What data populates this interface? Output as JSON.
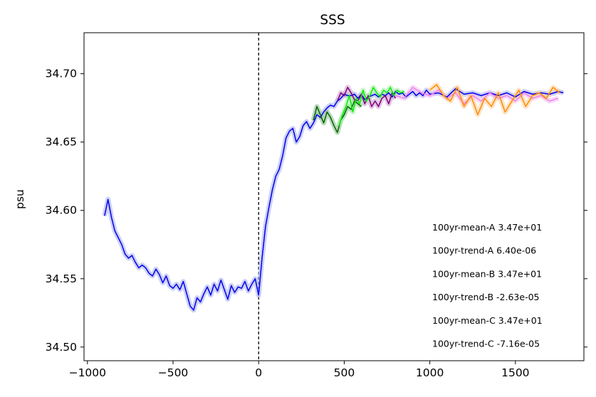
{
  "chart_data": {
    "type": "line",
    "title": "SSS",
    "xlabel": "",
    "ylabel": "psu",
    "xlim": [
      -1020,
      1900
    ],
    "ylim": [
      34.49,
      34.73
    ],
    "xticks": [
      -1000,
      -500,
      0,
      500,
      1000,
      1500
    ],
    "xtick_labels": [
      "−1000",
      "−500",
      "0",
      "500",
      "1000",
      "1500"
    ],
    "yticks": [
      34.5,
      34.55,
      34.6,
      34.65,
      34.7
    ],
    "ytick_labels": [
      "34.50",
      "34.55",
      "34.60",
      "34.65",
      "34.70"
    ],
    "vline_x": 0,
    "grid": false,
    "annotations": [
      "100yr-mean-A  3.47e+01",
      "100yr-trend-A  6.40e-06",
      "100yr-mean-B  3.47e+01",
      "100yr-trend-B  -2.63e-05",
      "100yr-mean-C  3.47e+01",
      "100yr-trend-C  -7.16e-05"
    ],
    "series": [
      {
        "color": "#0000ee",
        "raw_color": "#aab0f0",
        "x": [
          -900,
          -880,
          -860,
          -840,
          -820,
          -800,
          -780,
          -760,
          -740,
          -720,
          -700,
          -680,
          -660,
          -640,
          -620,
          -600,
          -580,
          -560,
          -540,
          -520,
          -500,
          -480,
          -460,
          -440,
          -420,
          -400,
          -380,
          -360,
          -340,
          -320,
          -300,
          -280,
          -260,
          -240,
          -220,
          -200,
          -180,
          -160,
          -140,
          -120,
          -100,
          -80,
          -60,
          -40,
          -20,
          0,
          20,
          40,
          60,
          80,
          100,
          120,
          140,
          160,
          180,
          200,
          220,
          240,
          260,
          280,
          300,
          320,
          340,
          360,
          380,
          400,
          420,
          440,
          460,
          480,
          500,
          520,
          540,
          560,
          580,
          600,
          620,
          640,
          660,
          680,
          700,
          720,
          740,
          760,
          780,
          800,
          820,
          840,
          860,
          880,
          900,
          920,
          940,
          960,
          980,
          1000,
          1050,
          1100,
          1150,
          1200,
          1250,
          1300,
          1350,
          1400,
          1450,
          1500,
          1550,
          1600,
          1650,
          1700,
          1750,
          1780
        ],
        "values": [
          34.596,
          34.608,
          34.595,
          34.585,
          34.58,
          34.575,
          34.568,
          34.565,
          34.567,
          34.562,
          34.558,
          34.56,
          34.558,
          34.554,
          34.552,
          34.557,
          34.553,
          34.547,
          34.552,
          34.545,
          34.543,
          34.546,
          34.542,
          34.548,
          34.539,
          34.53,
          34.527,
          34.536,
          34.533,
          34.539,
          34.544,
          34.538,
          34.546,
          34.541,
          34.549,
          34.542,
          34.535,
          34.545,
          34.54,
          34.544,
          34.543,
          34.548,
          34.541,
          34.546,
          34.55,
          34.538,
          34.565,
          34.588,
          34.602,
          34.615,
          34.625,
          34.63,
          34.64,
          34.653,
          34.658,
          34.66,
          34.65,
          34.654,
          34.662,
          34.665,
          34.66,
          34.664,
          34.67,
          34.668,
          34.672,
          34.675,
          34.677,
          34.676,
          34.68,
          34.682,
          34.685,
          34.684,
          34.684,
          34.685,
          34.682,
          34.685,
          34.681,
          34.683,
          34.684,
          34.685,
          34.683,
          34.685,
          34.684,
          34.686,
          34.683,
          34.687,
          34.685,
          34.686,
          34.683,
          34.685,
          34.687,
          34.684,
          34.686,
          34.684,
          34.688,
          34.685,
          34.686,
          34.683,
          34.689,
          34.685,
          34.686,
          34.684,
          34.686,
          34.684,
          34.686,
          34.683,
          34.687,
          34.685,
          34.686,
          34.685,
          34.687,
          34.686
        ]
      },
      {
        "color": "#006400",
        "raw_color": "#8fbf8f",
        "x": [
          320,
          340,
          360,
          380,
          400,
          420,
          440,
          460,
          480,
          500,
          520,
          540,
          560,
          580,
          600
        ],
        "values": [
          34.666,
          34.676,
          34.67,
          34.664,
          34.672,
          34.668,
          34.662,
          34.657,
          34.666,
          34.67,
          34.676,
          34.674,
          34.68,
          34.678,
          34.676
        ]
      },
      {
        "color": "#7a007a",
        "raw_color": "#d0a0d0",
        "x": [
          460,
          480,
          500,
          520,
          540,
          560,
          580,
          600,
          620,
          640,
          660,
          680,
          700,
          720,
          740,
          760,
          780,
          800
        ],
        "values": [
          34.68,
          34.686,
          34.684,
          34.69,
          34.686,
          34.681,
          34.68,
          34.685,
          34.678,
          34.684,
          34.676,
          34.68,
          34.676,
          34.682,
          34.684,
          34.678,
          34.686,
          34.682
        ]
      },
      {
        "color": "#00ee00",
        "raw_color": "#a8f0a8",
        "x": [
          470,
          490,
          510,
          530,
          550,
          570,
          590,
          610,
          630,
          650,
          670,
          690,
          710,
          730,
          750,
          770,
          790,
          810,
          830,
          850
        ],
        "values": [
          34.662,
          34.67,
          34.676,
          34.684,
          34.672,
          34.682,
          34.678,
          34.688,
          34.68,
          34.684,
          34.69,
          34.686,
          34.683,
          34.688,
          34.686,
          34.69,
          34.684,
          34.688,
          34.686,
          34.687
        ]
      },
      {
        "color": "#ee82ee",
        "raw_color": "#f4c0f4",
        "x": [
          800,
          850,
          900,
          950,
          1000,
          1050,
          1100,
          1150,
          1200,
          1250,
          1300,
          1350,
          1400,
          1450,
          1500,
          1550,
          1600,
          1650,
          1700,
          1750
        ],
        "values": [
          34.684,
          34.682,
          34.69,
          34.686,
          34.684,
          34.688,
          34.682,
          34.686,
          34.678,
          34.684,
          34.68,
          34.686,
          34.682,
          34.684,
          34.68,
          34.686,
          34.682,
          34.684,
          34.68,
          34.682
        ]
      },
      {
        "color": "#ff8c00",
        "raw_color": "#ffd0a0",
        "x": [
          1000,
          1040,
          1080,
          1120,
          1160,
          1200,
          1240,
          1280,
          1320,
          1360,
          1400,
          1440,
          1480,
          1520,
          1560,
          1600,
          1640,
          1680,
          1720,
          1760
        ],
        "values": [
          34.688,
          34.692,
          34.684,
          34.68,
          34.69,
          34.676,
          34.684,
          34.67,
          34.682,
          34.676,
          34.686,
          34.672,
          34.68,
          34.688,
          34.676,
          34.684,
          34.686,
          34.682,
          34.69,
          34.686
        ]
      }
    ]
  }
}
